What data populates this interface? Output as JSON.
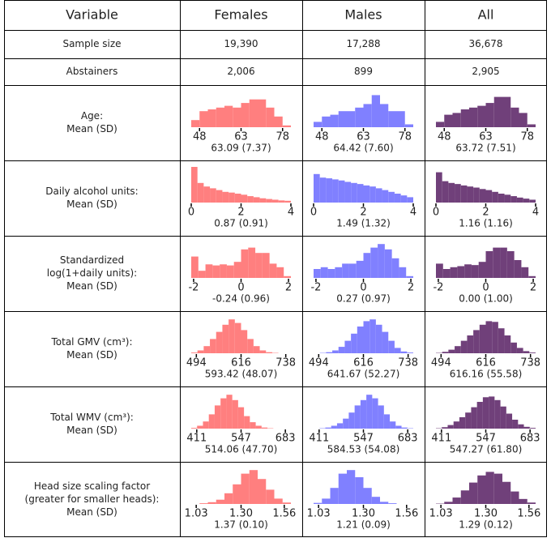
{
  "table": {
    "header": [
      "Variable",
      "Females",
      "Males",
      "All"
    ],
    "colors": [
      "#ff7f7f",
      "#8080ff",
      "#70407a"
    ],
    "rows": [
      {
        "label": [
          "Sample size"
        ],
        "cells": [
          {
            "text": "19,390"
          },
          {
            "text": "17,288"
          },
          {
            "text": "36,678"
          }
        ]
      },
      {
        "label": [
          "Abstainers"
        ],
        "cells": [
          {
            "text": "2,006"
          },
          {
            "text": "899"
          },
          {
            "text": "2,905"
          }
        ]
      },
      {
        "label": [
          "Age:",
          "Mean (SD)"
        ],
        "cells": [
          {
            "hist": {
              "bins": [
                45,
                48,
                51,
                54,
                57,
                60,
                63,
                66,
                69,
                72,
                75,
                78,
                81
              ],
              "counts": [
                20,
                45,
                50,
                55,
                60,
                55,
                68,
                78,
                78,
                55,
                30,
                5
              ],
              "xlim": [
                45,
                81
              ],
              "xticks": [
                48,
                63,
                78
              ]
            },
            "summary": "63.09 (7.37)"
          },
          {
            "hist": {
              "bins": [
                45,
                48,
                51,
                54,
                57,
                60,
                63,
                66,
                69,
                72,
                75,
                78,
                81
              ],
              "counts": [
                15,
                30,
                35,
                45,
                45,
                55,
                65,
                90,
                65,
                45,
                45,
                8
              ],
              "xlim": [
                45,
                81
              ],
              "xticks": [
                48,
                63,
                78
              ]
            },
            "summary": "64.42 (7.60)"
          },
          {
            "hist": {
              "bins": [
                45,
                48,
                51,
                54,
                57,
                60,
                63,
                66,
                69,
                72,
                75,
                78,
                81
              ],
              "counts": [
                15,
                35,
                40,
                50,
                55,
                60,
                68,
                85,
                85,
                55,
                40,
                8
              ],
              "xlim": [
                45,
                81
              ],
              "xticks": [
                48,
                63,
                78
              ]
            },
            "summary": "63.72 (7.51)"
          }
        ]
      },
      {
        "label": [
          "Daily alcohol units:",
          "Mean (SD)"
        ],
        "cells": [
          {
            "hist": {
              "bins": [
                0,
                0.25,
                0.5,
                0.75,
                1,
                1.25,
                1.5,
                1.75,
                2,
                2.25,
                2.5,
                2.75,
                3,
                3.25,
                3.5,
                3.75,
                4
              ],
              "counts": [
                100,
                55,
                45,
                40,
                35,
                30,
                28,
                25,
                22,
                18,
                15,
                12,
                10,
                8,
                6,
                5
              ],
              "xlim": [
                0,
                4
              ],
              "xticks": [
                0,
                2,
                4
              ]
            },
            "summary": "0.87 (0.91)"
          },
          {
            "hist": {
              "bins": [
                0,
                0.25,
                0.5,
                0.75,
                1,
                1.25,
                1.5,
                1.75,
                2,
                2.25,
                2.5,
                2.75,
                3,
                3.25,
                3.5,
                3.75,
                4
              ],
              "counts": [
                80,
                70,
                68,
                65,
                62,
                58,
                55,
                52,
                48,
                45,
                40,
                35,
                30,
                25,
                20,
                15
              ],
              "xlim": [
                0,
                4
              ],
              "xticks": [
                0,
                2,
                4
              ]
            },
            "summary": "1.49 (1.32)"
          },
          {
            "hist": {
              "bins": [
                0,
                0.25,
                0.5,
                0.75,
                1,
                1.25,
                1.5,
                1.75,
                2,
                2.25,
                2.5,
                2.75,
                3,
                3.25,
                3.5,
                3.75,
                4
              ],
              "counts": [
                85,
                60,
                55,
                52,
                48,
                45,
                42,
                38,
                35,
                30,
                25,
                22,
                18,
                14,
                11,
                8
              ],
              "xlim": [
                0,
                4
              ],
              "xticks": [
                0,
                2,
                4
              ]
            },
            "summary": "1.16 (1.16)"
          }
        ]
      },
      {
        "label": [
          "Standardized",
          "log(1+daily units):",
          "Mean (SD)"
        ],
        "cells": [
          {
            "hist": {
              "bins": [
                -2.1,
                -1.8,
                -1.5,
                -1.2,
                -0.9,
                -0.6,
                -0.3,
                0,
                0.3,
                0.6,
                0.9,
                1.2,
                1.5,
                1.8,
                2.1
              ],
              "counts": [
                60,
                20,
                38,
                35,
                38,
                35,
                45,
                80,
                85,
                70,
                70,
                40,
                30,
                5
              ],
              "xlim": [
                -2.1,
                2.1
              ],
              "xticks": [
                -2,
                0,
                2
              ]
            },
            "summary": "-0.24 (0.96)"
          },
          {
            "hist": {
              "bins": [
                -2.1,
                -1.8,
                -1.5,
                -1.2,
                -0.9,
                -0.6,
                -0.3,
                0,
                0.3,
                0.6,
                0.9,
                1.2,
                1.5,
                1.8,
                2.1
              ],
              "counts": [
                25,
                30,
                25,
                30,
                40,
                40,
                48,
                70,
                85,
                95,
                80,
                55,
                30,
                5
              ],
              "xlim": [
                -2.1,
                2.1
              ],
              "xticks": [
                -2,
                0,
                2
              ]
            },
            "summary": "0.27 (0.97)"
          },
          {
            "hist": {
              "bins": [
                -2.1,
                -1.8,
                -1.5,
                -1.2,
                -0.9,
                -0.6,
                -0.3,
                0,
                0.3,
                0.6,
                0.9,
                1.2,
                1.5,
                1.8,
                2.1
              ],
              "counts": [
                40,
                25,
                30,
                33,
                38,
                36,
                45,
                75,
                85,
                85,
                75,
                50,
                30,
                5
              ],
              "xlim": [
                -2.1,
                2.1
              ],
              "xticks": [
                -2,
                0,
                2
              ]
            },
            "summary": "0.00 (1.00)"
          }
        ]
      },
      {
        "label": [
          "Total GMV (cm³):",
          "Mean (SD)"
        ],
        "cells": [
          {
            "hist": {
              "bins": [
                480,
                497,
                514,
                531,
                548,
                565,
                582,
                599,
                616,
                633,
                650,
                667,
                684,
                701,
                718,
                735,
                752
              ],
              "counts": [
                2,
                8,
                20,
                40,
                60,
                80,
                95,
                85,
                65,
                40,
                20,
                8,
                3,
                1,
                0,
                0
              ],
              "xlim": [
                480,
                752
              ],
              "xticks": [
                494,
                616,
                738
              ]
            },
            "summary": "593.42 (48.07)"
          },
          {
            "hist": {
              "bins": [
                480,
                497,
                514,
                531,
                548,
                565,
                582,
                599,
                616,
                633,
                650,
                667,
                684,
                701,
                718,
                735,
                752
              ],
              "counts": [
                0,
                1,
                3,
                8,
                18,
                35,
                55,
                75,
                90,
                95,
                80,
                60,
                35,
                15,
                5,
                2
              ],
              "xlim": [
                480,
                752
              ],
              "xticks": [
                494,
                616,
                738
              ]
            },
            "summary": "641.67 (52.27)"
          },
          {
            "hist": {
              "bins": [
                480,
                497,
                514,
                531,
                548,
                565,
                582,
                599,
                616,
                633,
                650,
                667,
                684,
                701,
                718,
                735,
                752
              ],
              "counts": [
                1,
                4,
                10,
                20,
                35,
                50,
                65,
                80,
                90,
                88,
                70,
                50,
                30,
                15,
                6,
                2
              ],
              "xlim": [
                480,
                752
              ],
              "xticks": [
                494,
                616,
                738
              ]
            },
            "summary": "616.16 (55.58)"
          }
        ]
      },
      {
        "label": [
          "Total WMV (cm³):",
          "Mean (SD)"
        ],
        "cells": [
          {
            "hist": {
              "bins": [
                394,
                412,
                430,
                448,
                466,
                484,
                502,
                520,
                538,
                556,
                574,
                592,
                610,
                628,
                646,
                664,
                682,
                700
              ],
              "counts": [
                2,
                8,
                20,
                40,
                65,
                85,
                95,
                80,
                60,
                35,
                18,
                8,
                3,
                1,
                0,
                0,
                0
              ],
              "xlim": [
                394,
                700
              ],
              "xticks": [
                411,
                547,
                683
              ]
            },
            "summary": "514.06 (47.70)"
          },
          {
            "hist": {
              "bins": [
                394,
                412,
                430,
                448,
                466,
                484,
                502,
                520,
                538,
                556,
                574,
                592,
                610,
                628,
                646,
                664,
                682,
                700
              ],
              "counts": [
                0,
                1,
                3,
                8,
                15,
                28,
                45,
                65,
                80,
                95,
                85,
                65,
                40,
                20,
                8,
                3,
                1
              ],
              "xlim": [
                394,
                700
              ],
              "xticks": [
                411,
                547,
                683
              ]
            },
            "summary": "584.53 (54.08)"
          },
          {
            "hist": {
              "bins": [
                394,
                412,
                430,
                448,
                466,
                484,
                502,
                520,
                538,
                556,
                574,
                592,
                610,
                628,
                646,
                664,
                682,
                700
              ],
              "counts": [
                1,
                4,
                10,
                20,
                32,
                45,
                60,
                75,
                88,
                90,
                80,
                62,
                42,
                25,
                12,
                5,
                2
              ],
              "xlim": [
                394,
                700
              ],
              "xticks": [
                411,
                547,
                683
              ]
            },
            "summary": "547.27 (61.80)"
          }
        ]
      },
      {
        "label": [
          "Head size scaling factor",
          "(greater for smaller heads):",
          "Mean (SD)"
        ],
        "cells": [
          {
            "hist": {
              "bins": [
                1,
                1.05,
                1.1,
                1.15,
                1.2,
                1.25,
                1.3,
                1.35,
                1.4,
                1.45,
                1.5,
                1.55,
                1.6
              ],
              "counts": [
                0,
                2,
                5,
                12,
                30,
                55,
                85,
                95,
                70,
                40,
                15,
                4
              ],
              "xlim": [
                1,
                1.6
              ],
              "xticks": [
                1.03,
                {
                  "value": 1.3,
                  "label": "1.30"
                },
                1.56
              ]
            },
            "summary": "1.37 (0.10)"
          },
          {
            "hist": {
              "bins": [
                1,
                1.05,
                1.1,
                1.15,
                1.2,
                1.25,
                1.3,
                1.35,
                1.4,
                1.45,
                1.5,
                1.55,
                1.6
              ],
              "counts": [
                3,
                15,
                45,
                85,
                95,
                75,
                45,
                20,
                6,
                2,
                0,
                0
              ],
              "xlim": [
                1,
                1.6
              ],
              "xticks": [
                1.03,
                {
                  "value": 1.3,
                  "label": "1.30"
                },
                1.56
              ]
            },
            "summary": "1.21 (0.09)"
          },
          {
            "hist": {
              "bins": [
                1,
                1.05,
                1.1,
                1.15,
                1.2,
                1.25,
                1.3,
                1.35,
                1.4,
                1.45,
                1.5,
                1.55,
                1.6
              ],
              "counts": [
                1,
                6,
                18,
                38,
                60,
                80,
                90,
                85,
                62,
                35,
                14,
                4
              ],
              "xlim": [
                1,
                1.6
              ],
              "xticks": [
                1.03,
                {
                  "value": 1.3,
                  "label": "1.30"
                },
                1.56
              ]
            },
            "summary": "1.29 (0.12)"
          }
        ]
      }
    ]
  }
}
